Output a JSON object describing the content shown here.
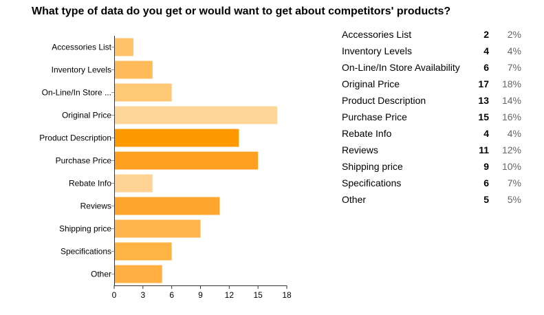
{
  "title": "What type of data do you get or would want to get about competitors' products?",
  "chart_data": {
    "type": "bar",
    "orientation": "horizontal",
    "axis_labels": [
      "Accessories List",
      "Inventory Levels",
      "On-Line/In Store ...",
      "Original Price",
      "Product Description",
      "Purchase Price",
      "Rebate Info",
      "Reviews",
      "Shipping price",
      "Specifications",
      "Other"
    ],
    "values": [
      2,
      4,
      6,
      17,
      13,
      15,
      4,
      11,
      9,
      6,
      5
    ],
    "xlim": [
      0,
      18
    ],
    "xticks": [
      "0",
      "3",
      "6",
      "9",
      "12",
      "15",
      "18"
    ],
    "grid": false,
    "legend": "none",
    "colors": [
      "#ffc266",
      "#ffbb59",
      "#ffc875",
      "#ffd699",
      "#ff9900",
      "#ffa020",
      "#ffd394",
      "#ffa52e",
      "#ffb54d",
      "#ffb342",
      "#ffb040"
    ]
  },
  "summary": [
    {
      "label": "Accessories List",
      "count": "2",
      "percent": "2%"
    },
    {
      "label": "Inventory Levels",
      "count": "4",
      "percent": "4%"
    },
    {
      "label": "On-Line/In Store Availability",
      "count": "6",
      "percent": "7%"
    },
    {
      "label": "Original Price",
      "count": "17",
      "percent": "18%"
    },
    {
      "label": "Product Description",
      "count": "13",
      "percent": "14%"
    },
    {
      "label": "Purchase Price",
      "count": "15",
      "percent": "16%"
    },
    {
      "label": "Rebate Info",
      "count": "4",
      "percent": "4%"
    },
    {
      "label": "Reviews",
      "count": "11",
      "percent": "12%"
    },
    {
      "label": "Shipping price",
      "count": "9",
      "percent": "10%"
    },
    {
      "label": "Specifications",
      "count": "6",
      "percent": "7%"
    },
    {
      "label": "Other",
      "count": "5",
      "percent": "5%"
    }
  ]
}
